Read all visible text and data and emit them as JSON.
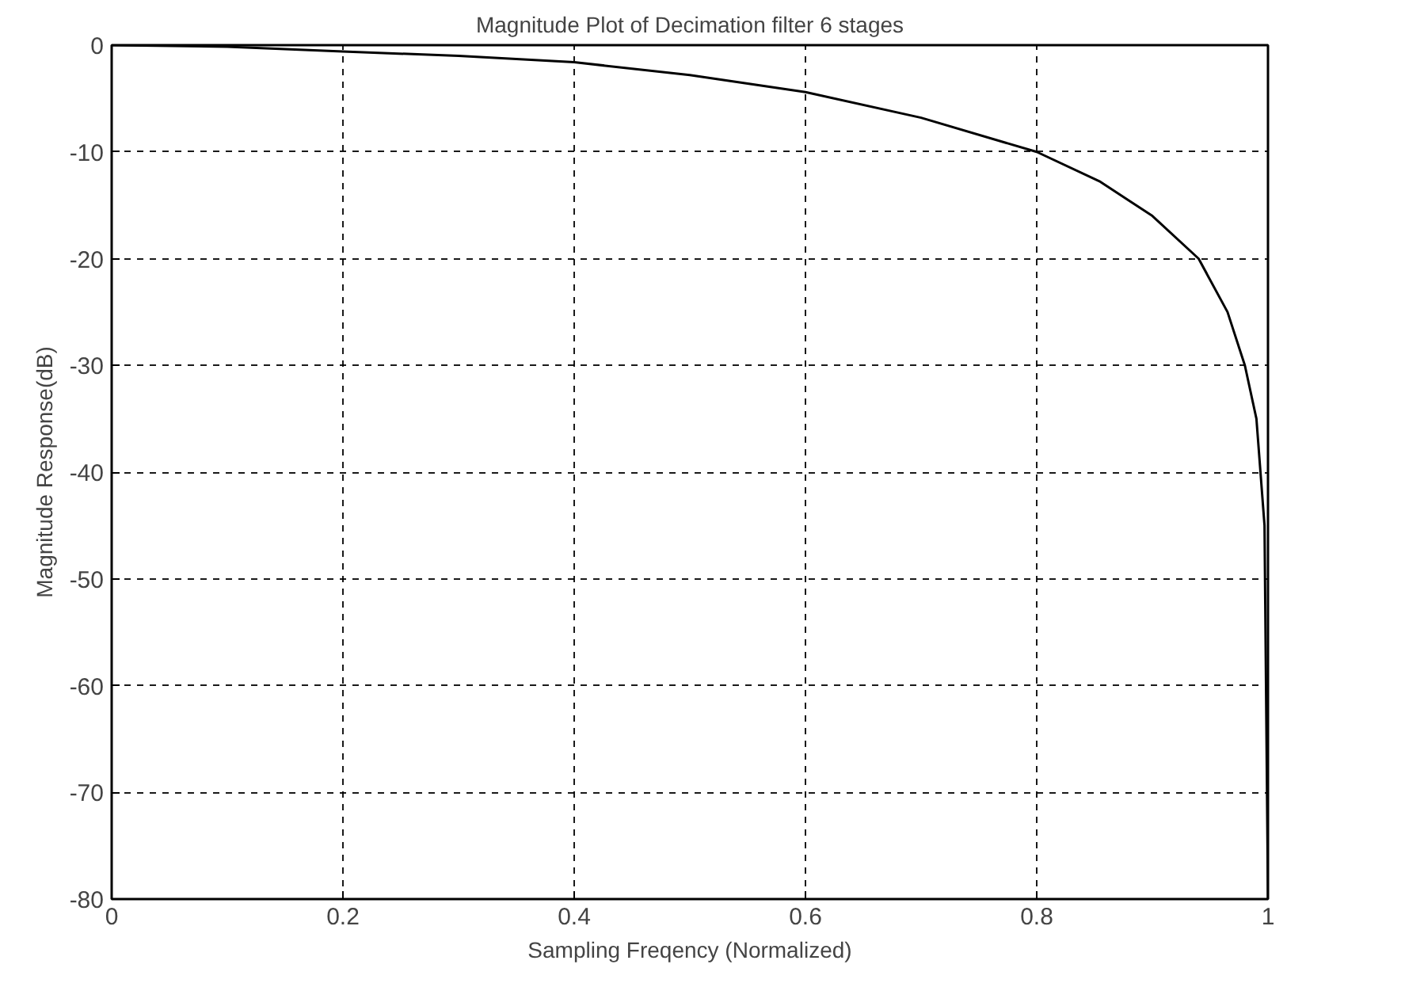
{
  "chart_data": {
    "type": "line",
    "title": "Magnitude Plot of Decimation filter 6 stages",
    "xlabel": "Sampling Freqency (Normalized)",
    "ylabel": "Magnitude Response(dB)",
    "x": [
      0,
      0.1,
      0.2,
      0.3,
      0.4,
      0.5,
      0.6,
      0.7,
      0.8,
      0.855,
      0.9,
      0.94,
      0.965,
      0.98,
      0.99,
      0.997,
      1.0
    ],
    "series": [
      {
        "color": "#000000",
        "values": [
          0,
          -0.15,
          -0.6,
          -1.0,
          -1.6,
          -2.8,
          -4.4,
          -6.8,
          -10,
          -12.8,
          -16,
          -20,
          -25,
          -30,
          -35,
          -45,
          -80
        ]
      }
    ],
    "xlim": [
      0,
      1
    ],
    "ylim": [
      -80,
      0
    ],
    "xticks": [
      0,
      0.2,
      0.4,
      0.6,
      0.8,
      1
    ],
    "yticks": [
      -80,
      -70,
      -60,
      -50,
      -40,
      -30,
      -20,
      -10,
      0
    ],
    "grid": true,
    "line_style": "solid"
  }
}
